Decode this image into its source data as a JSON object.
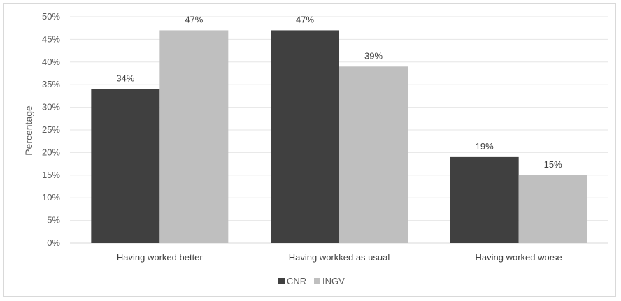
{
  "chart_data": {
    "type": "bar",
    "title": "",
    "xlabel": "",
    "ylabel": "Percentage",
    "ylim": [
      0,
      50
    ],
    "ytick_step": 5,
    "ytick_suffix": "%",
    "categories": [
      "Having worked better",
      "Having workked as usual",
      "Having worked worse"
    ],
    "series": [
      {
        "name": "CNR",
        "color": "#404040",
        "values": [
          34,
          47,
          19
        ],
        "labels": [
          "34%",
          "47%",
          "19%"
        ]
      },
      {
        "name": "INGV",
        "color": "#bfbfbf",
        "values": [
          47,
          39,
          15
        ],
        "labels": [
          "47%",
          "39%",
          "15%"
        ]
      }
    ],
    "grid": true,
    "legend_position": "bottom"
  }
}
